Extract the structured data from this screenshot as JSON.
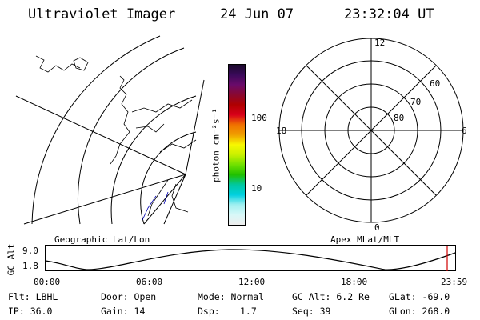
{
  "header": {
    "title": "Ultraviolet Imager",
    "date": "24 Jun 07",
    "time": "23:32:04 UT"
  },
  "colorbar": {
    "unit_label": "photon cm⁻²s⁻¹",
    "tick_labels": [
      "100",
      "10"
    ],
    "colors_top_to_bottom": [
      "#1a0a2a",
      "#3a0a5a",
      "#6a0a6a",
      "#8a0830",
      "#b00000",
      "#d8001a",
      "#f07000",
      "#f0a000",
      "#f8f800",
      "#c8f000",
      "#70e000",
      "#20c000",
      "#00c8a0",
      "#00d0e0",
      "#a0f0f0",
      "#d8f8f8",
      "#eeeeee"
    ]
  },
  "maps": {
    "left_caption": "Geographic Lat/Lon",
    "right_caption": "Apex MLat/MLT",
    "polar_labels": {
      "mlt_top": "12",
      "mlt_left": "18",
      "mlt_right": "6",
      "mlt_bottom": "0",
      "lat_60": "60",
      "lat_70": "70",
      "lat_80": "80"
    }
  },
  "altitude_plot": {
    "y_label": "GC Alt",
    "y_max": "9.0",
    "y_min": "1.8",
    "x_ticks": [
      "00:00",
      "06:00",
      "12:00",
      "18:00",
      "23:59"
    ],
    "marker_color": "#d00000"
  },
  "info": {
    "flt": "Flt: LBHL",
    "ip": "IP: 36.0",
    "door": "Door: Open",
    "gain": "Gain: 14",
    "mode": "Mode: Normal",
    "dsp_label": "Dsp:",
    "dsp_value": "1.7",
    "gc_alt": "GC Alt: 6.2 Re",
    "seq": "Seq: 39",
    "glat": "GLat: -69.0",
    "glon": "GLon: 268.0"
  }
}
